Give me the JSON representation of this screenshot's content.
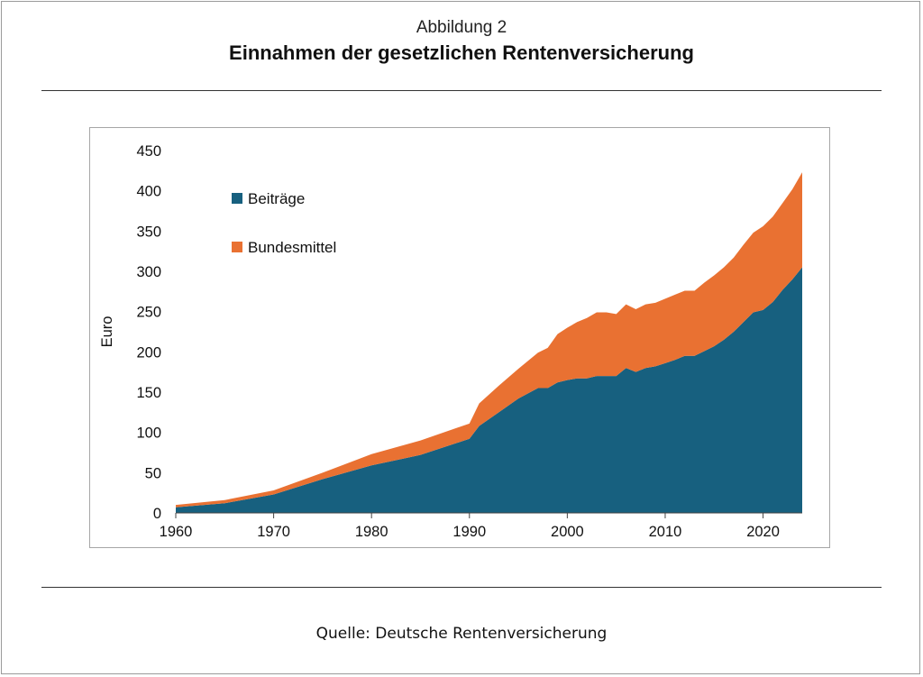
{
  "figure": {
    "label": "Abbildung 2",
    "title": "Einnahmen der gesetzlichen Rentenversicherung",
    "source": "Quelle: Deutsche Rentenversicherung"
  },
  "chart_data": {
    "type": "area",
    "stacked": true,
    "ylabel": "Euro",
    "xlabel": "",
    "xlim": [
      1960,
      2024
    ],
    "ylim": [
      0,
      450
    ],
    "x_ticks": [
      1960,
      1970,
      1980,
      1990,
      2000,
      2010,
      2020
    ],
    "y_ticks": [
      0,
      50,
      100,
      150,
      200,
      250,
      300,
      350,
      400,
      450
    ],
    "grid": false,
    "legend_position": "top-left",
    "x": [
      1960,
      1965,
      1970,
      1975,
      1980,
      1985,
      1990,
      1991,
      1993,
      1995,
      1997,
      1998,
      1999,
      2000,
      2001,
      2002,
      2003,
      2004,
      2005,
      2006,
      2007,
      2008,
      2009,
      2010,
      2011,
      2012,
      2013,
      2014,
      2015,
      2016,
      2017,
      2018,
      2019,
      2020,
      2021,
      2022,
      2023,
      2024
    ],
    "series": [
      {
        "name": "Beiträge",
        "color": "#17607f",
        "values": [
          7,
          12,
          23,
          42,
          59,
          72,
          92,
          108,
          125,
          142,
          155,
          155,
          162,
          165,
          167,
          167,
          170,
          170,
          170,
          180,
          175,
          180,
          182,
          186,
          190,
          195,
          195,
          201,
          207,
          215,
          225,
          237,
          249,
          252,
          262,
          277,
          290,
          305
        ]
      },
      {
        "name": "Bundesmittel",
        "color": "#e97132",
        "values": [
          3,
          4,
          5,
          8,
          14,
          18,
          19,
          28,
          33,
          37,
          44,
          50,
          60,
          65,
          70,
          75,
          79,
          79,
          77,
          79,
          78,
          79,
          79,
          80,
          81,
          81,
          81,
          85,
          88,
          90,
          92,
          96,
          99,
          104,
          106,
          108,
          112,
          118
        ]
      }
    ]
  }
}
